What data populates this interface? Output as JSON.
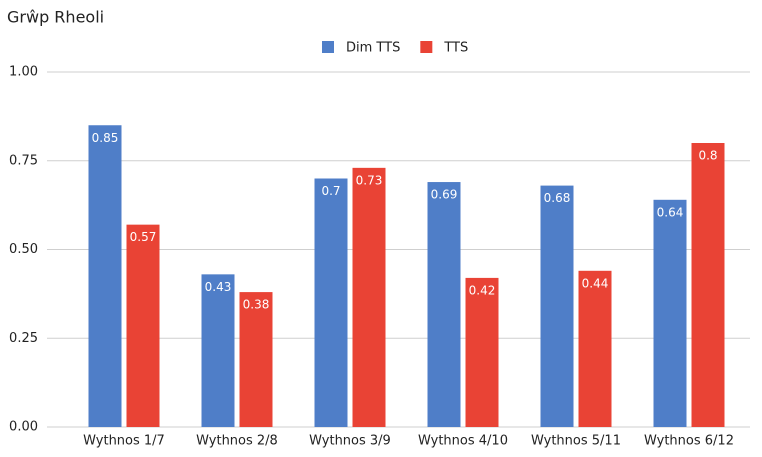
{
  "chart_data": {
    "type": "bar",
    "title": "Grŵp Rheoli",
    "categories": [
      "Wythnos 1/7",
      "Wythnos 2/8",
      "Wythnos 3/9",
      "Wythnos 4/10",
      "Wythnos 5/11",
      "Wythnos 6/12"
    ],
    "series": [
      {
        "name": "Dim TTS",
        "color": "#4f7ec8",
        "values": [
          0.85,
          0.43,
          0.7,
          0.69,
          0.68,
          0.64
        ]
      },
      {
        "name": "TTS",
        "color": "#e94335",
        "values": [
          0.57,
          0.38,
          0.73,
          0.42,
          0.44,
          0.8
        ]
      }
    ],
    "ylim": [
      0,
      1
    ],
    "yticks": [
      {
        "value": 0,
        "label": "0.00"
      },
      {
        "value": 0.25,
        "label": "0.25"
      },
      {
        "value": 0.5,
        "label": "0.50"
      },
      {
        "value": 0.75,
        "label": "0.75"
      },
      {
        "value": 1,
        "label": "1.00"
      }
    ],
    "grid": true,
    "legend": "top"
  }
}
